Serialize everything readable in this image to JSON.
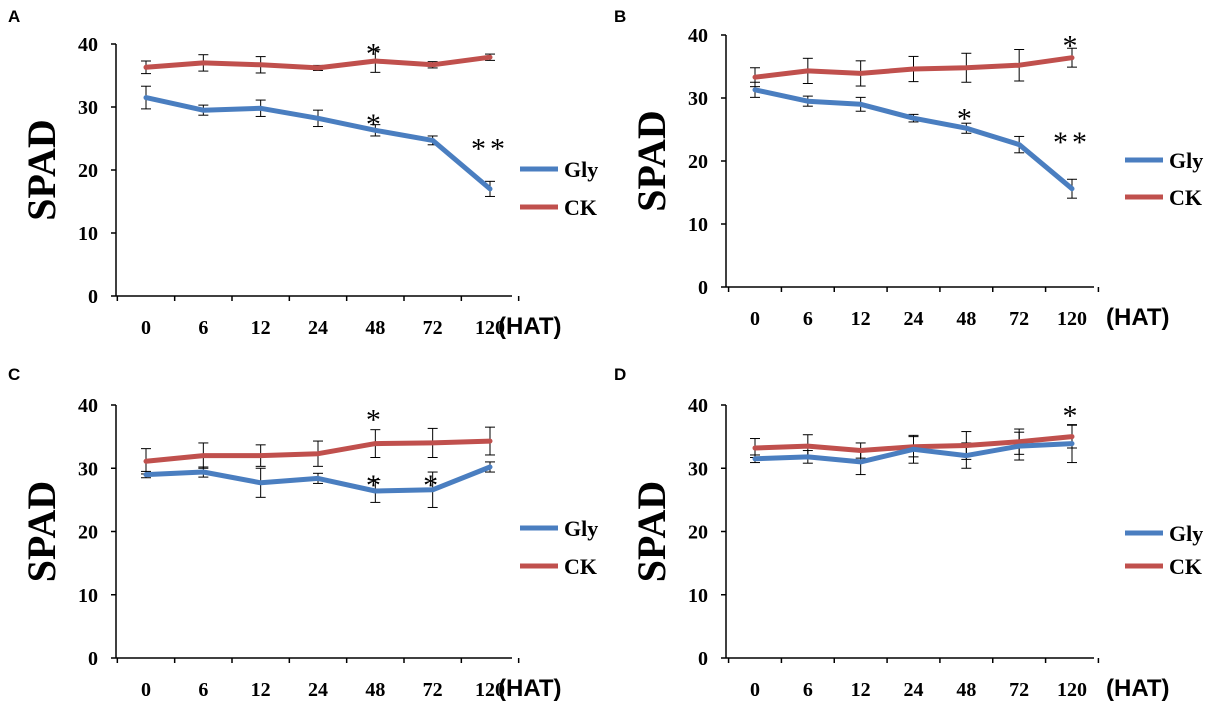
{
  "chart_data": [
    {
      "panel": "A",
      "type": "line",
      "ylabel": "SPAD",
      "xunit": "(HAT)",
      "categories": [
        "0",
        "6",
        "12",
        "24",
        "48",
        "72",
        "120"
      ],
      "yticks": [
        "0",
        "10",
        "20",
        "30",
        "40"
      ],
      "ylim": [
        0,
        40
      ],
      "series": [
        {
          "name": "Gly",
          "color": "#4a7ec0",
          "values": [
            31.5,
            29.5,
            29.8,
            28.2,
            26.3,
            24.7,
            17.0
          ],
          "errors": [
            1.8,
            0.8,
            1.3,
            1.3,
            0.9,
            0.7,
            1.2
          ]
        },
        {
          "name": "CK",
          "color": "#c0504d",
          "values": [
            36.3,
            37.0,
            36.7,
            36.2,
            37.3,
            36.7,
            37.9
          ],
          "errors": [
            1.0,
            1.3,
            1.3,
            0.4,
            1.8,
            0.5,
            0.5
          ]
        }
      ],
      "annotations": [
        {
          "text": "*",
          "index": 4,
          "y": 39.8
        },
        {
          "text": "*",
          "index": 4,
          "y": 28.6
        },
        {
          "text": "**",
          "index": 6,
          "y": 24.7
        }
      ]
    },
    {
      "panel": "B",
      "type": "line",
      "ylabel": "SPAD",
      "xunit": "(HAT)",
      "categories": [
        "0",
        "6",
        "12",
        "24",
        "48",
        "72",
        "120"
      ],
      "yticks": [
        "0",
        "10",
        "20",
        "30",
        "40"
      ],
      "ylim": [
        0,
        40
      ],
      "series": [
        {
          "name": "Gly",
          "color": "#4a7ec0",
          "values": [
            31.3,
            29.5,
            29.0,
            26.8,
            25.2,
            22.6,
            15.6
          ],
          "errors": [
            1.2,
            0.8,
            1.1,
            0.6,
            0.8,
            1.3,
            1.5
          ]
        },
        {
          "name": "CK",
          "color": "#c0504d",
          "values": [
            33.3,
            34.3,
            33.9,
            34.6,
            34.8,
            35.2,
            36.4
          ],
          "errors": [
            1.5,
            2.0,
            2.0,
            2.0,
            2.3,
            2.5,
            1.5
          ]
        }
      ],
      "annotations": [
        {
          "text": "*",
          "index": 6,
          "y": 39.6
        },
        {
          "text": "*",
          "index": 4,
          "y": 28.0
        },
        {
          "text": "**",
          "index": 6,
          "y": 24.3
        }
      ]
    },
    {
      "panel": "C",
      "type": "line",
      "ylabel": "SPAD",
      "xunit": "(HAT)",
      "categories": [
        "0",
        "6",
        "12",
        "24",
        "48",
        "72",
        "120"
      ],
      "yticks": [
        "0",
        "10",
        "20",
        "30",
        "40"
      ],
      "ylim": [
        0,
        40
      ],
      "series": [
        {
          "name": "Gly",
          "color": "#4a7ec0",
          "values": [
            29.0,
            29.4,
            27.7,
            28.4,
            26.4,
            26.6,
            30.2
          ],
          "errors": [
            0.5,
            0.8,
            2.3,
            0.8,
            1.8,
            2.8,
            0.8
          ]
        },
        {
          "name": "CK",
          "color": "#c0504d",
          "values": [
            31.1,
            32.0,
            32.0,
            32.3,
            33.9,
            34.0,
            34.3
          ],
          "errors": [
            2.0,
            2.0,
            1.7,
            2.0,
            2.2,
            2.3,
            2.2
          ]
        }
      ],
      "annotations": [
        {
          "text": "*",
          "index": 4,
          "y": 39.0
        },
        {
          "text": "*",
          "index": 4,
          "y": 28.6
        },
        {
          "text": "*",
          "index": 5,
          "y": 28.6
        }
      ]
    },
    {
      "panel": "D",
      "type": "line",
      "ylabel": "SPAD",
      "xunit": "(HAT)",
      "categories": [
        "0",
        "6",
        "12",
        "24",
        "48",
        "72",
        "120"
      ],
      "yticks": [
        "0",
        "10",
        "20",
        "30",
        "40"
      ],
      "ylim": [
        0,
        40
      ],
      "series": [
        {
          "name": "Gly",
          "color": "#4a7ec0",
          "values": [
            31.5,
            31.8,
            31.0,
            33.0,
            32.0,
            33.5,
            33.9
          ],
          "errors": [
            0.6,
            1.0,
            2.0,
            2.2,
            2.0,
            2.2,
            3.0
          ]
        },
        {
          "name": "CK",
          "color": "#c0504d",
          "values": [
            33.2,
            33.5,
            32.8,
            33.4,
            33.6,
            34.2,
            35.0
          ],
          "errors": [
            1.5,
            1.8,
            1.2,
            1.6,
            2.2,
            2.0,
            1.8
          ]
        }
      ],
      "annotations": [
        {
          "text": "*",
          "index": 6,
          "y": 39.6
        }
      ]
    }
  ]
}
